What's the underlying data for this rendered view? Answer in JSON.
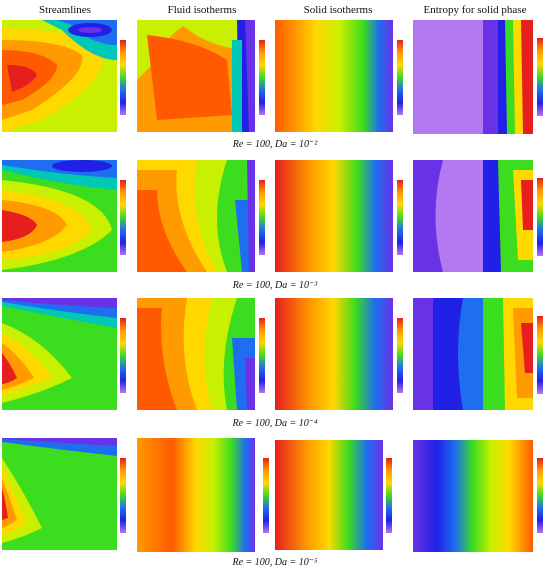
{
  "headers": [
    "Streamlines",
    "Fluid isotherms",
    "Solid isotherms",
    "Entropy for solid phase"
  ],
  "rows": [
    {
      "caption": "Re = 100, Da = 10⁻²"
    },
    {
      "caption": "Re = 100, Da = 10⁻³"
    },
    {
      "caption": "Re = 100, Da = 10⁻⁴"
    },
    {
      "caption": "Re = 100, Da = 10⁻⁵"
    }
  ],
  "colormap": [
    "#e61e1e",
    "#ff5a00",
    "#ff9a00",
    "#ffd800",
    "#c8f000",
    "#3cdc1e",
    "#00c8b4",
    "#1e6ef0",
    "#2020e6",
    "#6a32e6",
    "#b478f0"
  ]
}
